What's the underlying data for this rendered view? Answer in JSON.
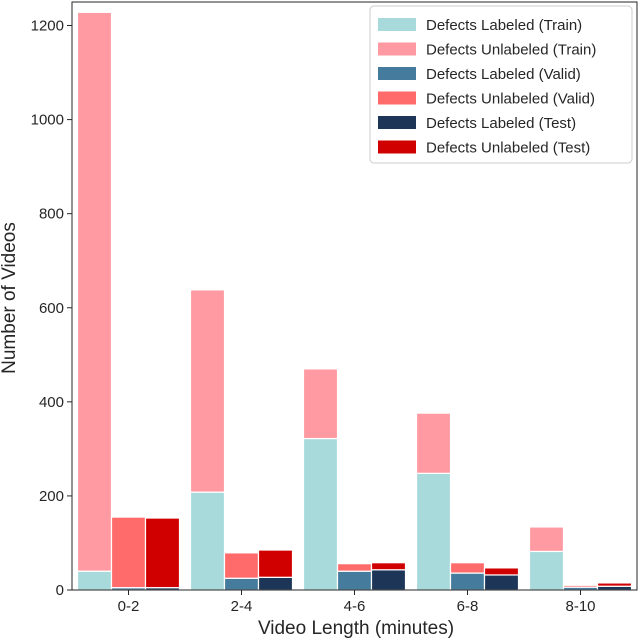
{
  "chart_data": {
    "type": "bar",
    "stacked": true,
    "title": "",
    "xlabel": "Video Length (minutes)",
    "ylabel": "Number of Videos",
    "ylim": [
      0,
      1250
    ],
    "yticks": [
      0,
      200,
      400,
      600,
      800,
      1000,
      1200
    ],
    "categories": [
      "0-2",
      "2-4",
      "4-6",
      "6-8",
      "8-10"
    ],
    "legend_position": "top-right",
    "groups": [
      {
        "name": "Train",
        "stack": [
          {
            "name": "Defects Labeled (Train)",
            "color": "#a8dadc",
            "values": [
              40,
              208,
              322,
              248,
              82
            ]
          },
          {
            "name": "Defects Unlabeled (Train)",
            "color": "#ff9aa2",
            "values": [
              1188,
              430,
              148,
              128,
              52
            ]
          }
        ]
      },
      {
        "name": "Valid",
        "stack": [
          {
            "name": "Defects Labeled (Valid)",
            "color": "#457b9d",
            "values": [
              5,
              25,
              40,
              36,
              6
            ]
          },
          {
            "name": "Defects Unlabeled (Valid)",
            "color": "#ff6b6b",
            "values": [
              150,
              54,
              16,
              22,
              4
            ]
          }
        ]
      },
      {
        "name": "Test",
        "stack": [
          {
            "name": "Defects Labeled (Test)",
            "color": "#1d3557",
            "values": [
              5,
              27,
              43,
              32,
              8
            ]
          },
          {
            "name": "Defects Unlabeled (Test)",
            "color": "#d00000",
            "values": [
              148,
              58,
              15,
              15,
              7
            ]
          }
        ]
      }
    ],
    "legend": [
      "Defects Labeled (Train)",
      "Defects Unlabeled (Train)",
      "Defects Labeled (Valid)",
      "Defects Unlabeled (Valid)",
      "Defects Labeled (Test)",
      "Defects Unlabeled (Test)"
    ]
  }
}
